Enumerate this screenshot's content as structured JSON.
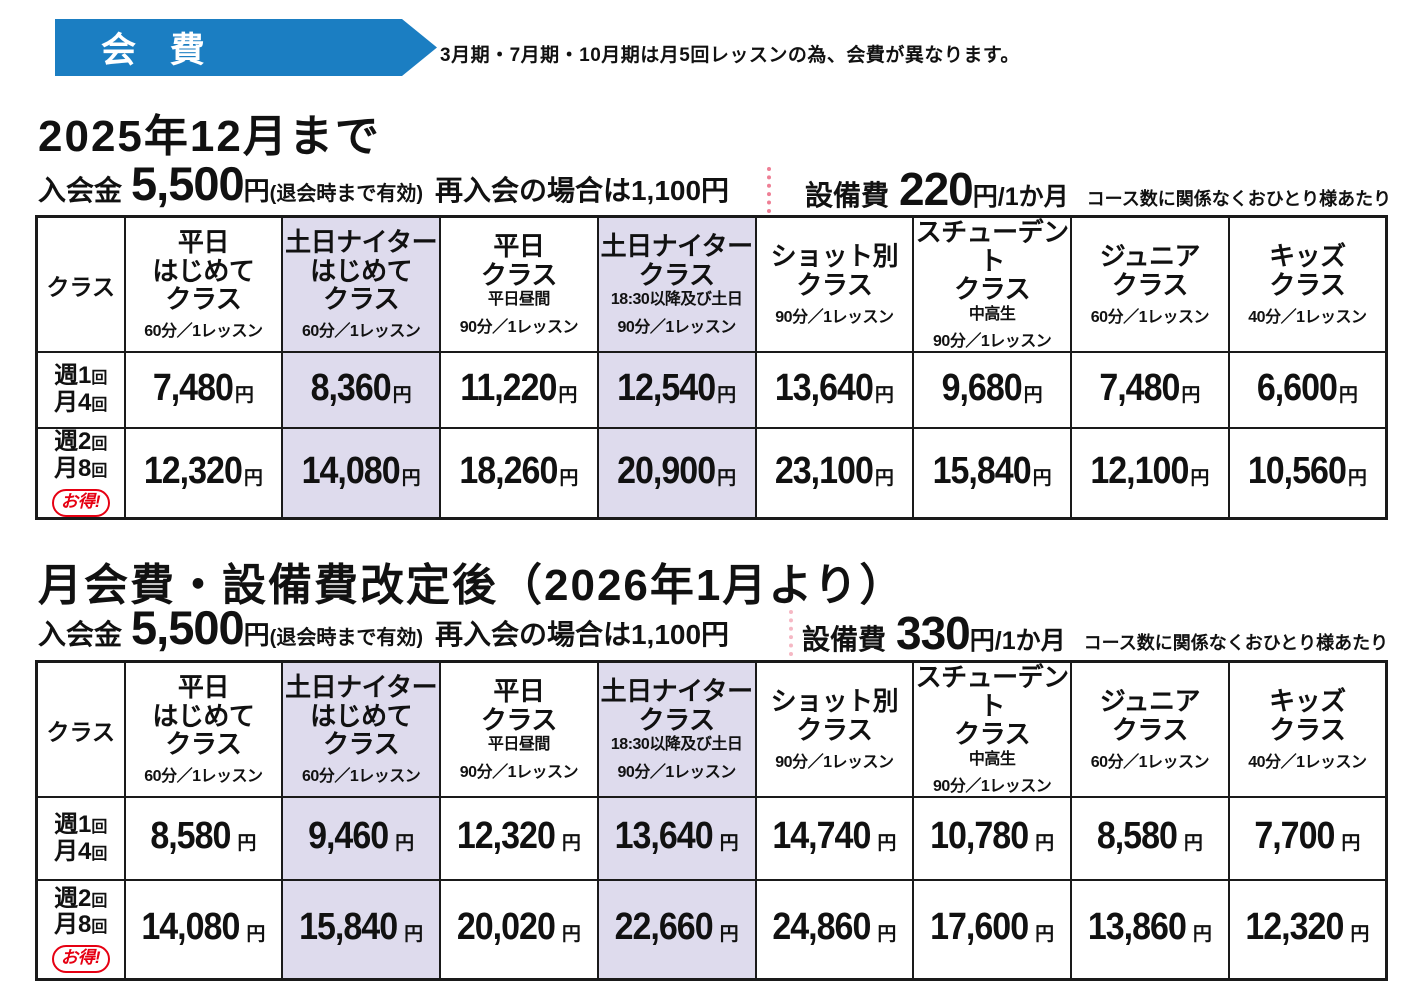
{
  "page": {
    "banner_label": "会 費",
    "banner_note": "3月期・7月期・10月期は月5回レッスンの為、会費が異なります。",
    "colors": {
      "banner_blue": "#1b7ec2",
      "highlight_lavender": "#dedbed",
      "badge_red": "#e60012",
      "table_border": "#1a1a1a",
      "dotted_pink": "#ee7f95",
      "text": "#111111"
    }
  },
  "sections": [
    {
      "title": "2025年12月まで",
      "admission": {
        "label": "入会金",
        "amount": "5,500",
        "unit": "円",
        "note_paren": "(退会時まで有効)",
        "rejoin_text": "再入会の場合は1,100円"
      },
      "facility": {
        "label": "設備費",
        "amount": "220",
        "unit": "円/1か月",
        "note": "コース数に関係なくおひとり様あたり"
      },
      "table": {
        "corner_label": "クラス",
        "price_unit": "円",
        "columns": [
          {
            "title_lines": [
              "平日",
              "はじめて",
              "クラス"
            ],
            "subtitle": "",
            "duration": "60分／1レッスン",
            "highlight": false
          },
          {
            "title_lines": [
              "土日ナイター",
              "はじめて",
              "クラス"
            ],
            "subtitle": "",
            "duration": "60分／1レッスン",
            "highlight": true
          },
          {
            "title_lines": [
              "平日",
              "クラス"
            ],
            "subtitle": "平日昼間",
            "duration": "90分／1レッスン",
            "highlight": false
          },
          {
            "title_lines": [
              "土日ナイター",
              "クラス"
            ],
            "subtitle": "18:30以降及び土日",
            "duration": "90分／1レッスン",
            "highlight": true
          },
          {
            "title_lines": [
              "ショット別",
              "クラス"
            ],
            "subtitle": "",
            "duration": "90分／1レッスン",
            "highlight": false
          },
          {
            "title_lines": [
              "スチューデント",
              "クラス"
            ],
            "subtitle": "中高生",
            "duration": "90分／1レッスン",
            "highlight": false
          },
          {
            "title_lines": [
              "ジュニア",
              "クラス"
            ],
            "subtitle": "",
            "duration": "60分／1レッスン",
            "highlight": false
          },
          {
            "title_lines": [
              "キッズ",
              "クラス"
            ],
            "subtitle": "",
            "duration": "40分／1レッスン",
            "highlight": false
          }
        ],
        "rows": [
          {
            "label_lines": [
              "週1回",
              "月4回"
            ],
            "badge": "",
            "prices": [
              "7,480",
              "8,360",
              "11,220",
              "12,540",
              "13,640",
              "9,680",
              "7,480",
              "6,600"
            ]
          },
          {
            "label_lines": [
              "週2回",
              "月8回"
            ],
            "badge": "お得!",
            "prices": [
              "12,320",
              "14,080",
              "18,260",
              "20,900",
              "23,100",
              "15,840",
              "12,100",
              "10,560"
            ]
          }
        ]
      }
    },
    {
      "title": "月会費・設備費改定後（2026年1月より）",
      "admission": {
        "label": "入会金",
        "amount": "5,500",
        "unit": "円",
        "note_paren": "(退会時まで有効)",
        "rejoin_text": "再入会の場合は1,100円"
      },
      "facility": {
        "label": "設備費",
        "amount": "330",
        "unit": "円/1か月",
        "note": "コース数に関係なくおひとり様あたり"
      },
      "table": {
        "corner_label": "クラス",
        "price_unit": "円",
        "columns": [
          {
            "title_lines": [
              "平日",
              "はじめて",
              "クラス"
            ],
            "subtitle": "",
            "duration": "60分／1レッスン",
            "highlight": false
          },
          {
            "title_lines": [
              "土日ナイター",
              "はじめて",
              "クラス"
            ],
            "subtitle": "",
            "duration": "60分／1レッスン",
            "highlight": true
          },
          {
            "title_lines": [
              "平日",
              "クラス"
            ],
            "subtitle": "平日昼間",
            "duration": "90分／1レッスン",
            "highlight": false
          },
          {
            "title_lines": [
              "土日ナイター",
              "クラス"
            ],
            "subtitle": "18:30以降及び土日",
            "duration": "90分／1レッスン",
            "highlight": true
          },
          {
            "title_lines": [
              "ショット別",
              "クラス"
            ],
            "subtitle": "",
            "duration": "90分／1レッスン",
            "highlight": false
          },
          {
            "title_lines": [
              "スチューデント",
              "クラス"
            ],
            "subtitle": "中高生",
            "duration": "90分／1レッスン",
            "highlight": false
          },
          {
            "title_lines": [
              "ジュニア",
              "クラス"
            ],
            "subtitle": "",
            "duration": "60分／1レッスン",
            "highlight": false
          },
          {
            "title_lines": [
              "キッズ",
              "クラス"
            ],
            "subtitle": "",
            "duration": "40分／1レッスン",
            "highlight": false
          }
        ],
        "rows": [
          {
            "label_lines": [
              "週1回",
              "月4回"
            ],
            "badge": "",
            "prices": [
              "8,580",
              "9,460",
              "12,320",
              "13,640",
              "14,740",
              "10,780",
              "8,580",
              "7,700"
            ]
          },
          {
            "label_lines": [
              "週2回",
              "月8回"
            ],
            "badge": "お得!",
            "prices": [
              "14,080",
              "15,840",
              "20,020",
              "22,660",
              "24,860",
              "17,600",
              "13,860",
              "12,320"
            ]
          }
        ]
      }
    }
  ]
}
